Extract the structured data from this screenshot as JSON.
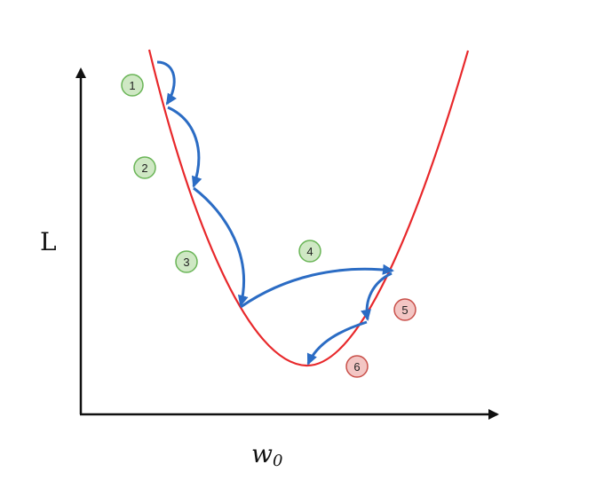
{
  "axes": {
    "y_label": "L",
    "x_label_base": "w",
    "x_label_sub": "0"
  },
  "steps": [
    {
      "label": "1",
      "state": "converging"
    },
    {
      "label": "2",
      "state": "converging"
    },
    {
      "label": "3",
      "state": "converging"
    },
    {
      "label": "4",
      "state": "converging"
    },
    {
      "label": "5",
      "state": "diverging"
    },
    {
      "label": "6",
      "state": "diverging"
    }
  ],
  "colors": {
    "curve": "#e8282b",
    "arrow": "#2b6cc4",
    "axis": "#111111",
    "converging_fill": "#cfe8c4",
    "converging_stroke": "#6ab557",
    "diverging_fill": "#f3c6c4",
    "diverging_stroke": "#c9504a"
  }
}
